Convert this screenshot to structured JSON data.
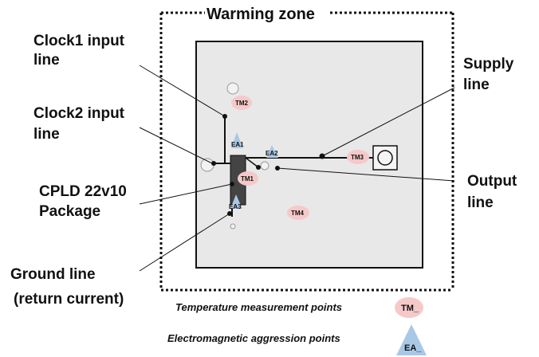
{
  "title": "Warming zone",
  "labels": {
    "clock1_a": "Clock1 input",
    "clock1_b": "line",
    "clock2_a": "Clock2 input",
    "clock2_b": "line",
    "cpld_a": "CPLD 22v10",
    "cpld_b": "Package",
    "ground_a": "Ground line",
    "ground_b": "(return current)",
    "supply_a": "Supply",
    "supply_b": "line",
    "output_a": "Output",
    "output_b": "line"
  },
  "tm_points": [
    "TM2",
    "TM1",
    "TM3",
    "TM4"
  ],
  "ea_points": [
    "EA1",
    "EA2",
    "EA3"
  ],
  "legend": {
    "temperature": "Temperature measurement points",
    "temperature_symbol": "TM_",
    "aggression": "Electromagnetic aggression points",
    "aggression_symbol": "EA_"
  },
  "colors": {
    "board_fill": "#e8e8e8",
    "tm_fill": "#f6c9c9",
    "ea_fill": "#a9c8e6"
  }
}
